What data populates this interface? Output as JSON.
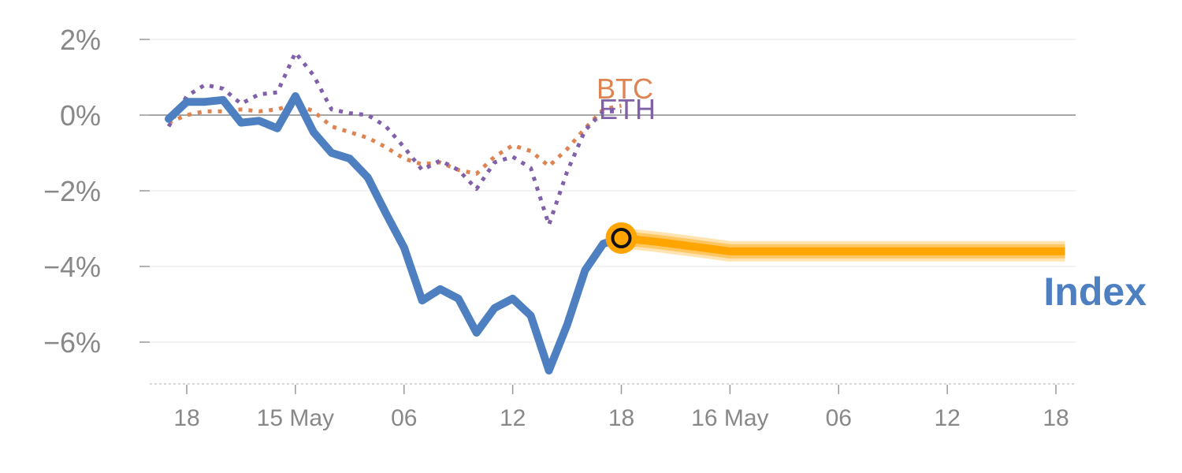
{
  "chart_data": {
    "type": "line",
    "x_tick_labels": [
      "18",
      "15 May",
      "06",
      "12",
      "18",
      "16 May",
      "06",
      "12",
      "18"
    ],
    "y_tick_labels": [
      "2%",
      "0%",
      "−2%",
      "−4%",
      "−6%"
    ],
    "y_ticks": [
      2,
      0,
      -2,
      -4,
      -6
    ],
    "ylim": [
      -7.2,
      2.6
    ],
    "xlim": [
      0,
      49
    ],
    "x_ticks": [
      1,
      7,
      13,
      19,
      25,
      31,
      37,
      43,
      49
    ],
    "grid": true,
    "series": [
      {
        "name": "Index",
        "color": "#4e80c1",
        "style": "solid",
        "x": [
          0,
          1,
          2,
          3,
          4,
          5,
          6,
          7,
          8,
          9,
          10,
          11,
          12,
          13,
          14,
          15,
          16,
          17,
          18,
          19,
          20,
          21,
          22,
          23,
          24,
          25
        ],
        "values": [
          -0.1,
          0.35,
          0.35,
          0.4,
          -0.2,
          -0.15,
          -0.35,
          0.5,
          -0.45,
          -1.0,
          -1.15,
          -1.65,
          -2.6,
          -3.5,
          -4.9,
          -4.6,
          -4.85,
          -5.75,
          -5.1,
          -4.85,
          -5.3,
          -6.75,
          -5.55,
          -4.1,
          -3.4,
          -3.25
        ]
      },
      {
        "name": "BTC",
        "color": "#dd8452",
        "style": "dotted",
        "x": [
          0,
          1,
          2,
          3,
          4,
          5,
          6,
          7,
          8,
          9,
          10,
          11,
          12,
          13,
          14,
          15,
          16,
          17,
          18,
          19,
          20,
          21,
          22,
          23,
          24,
          25
        ],
        "values": [
          -0.2,
          0.0,
          0.1,
          0.1,
          0.15,
          0.1,
          0.15,
          0.3,
          0.1,
          -0.3,
          -0.45,
          -0.6,
          -0.85,
          -1.15,
          -1.3,
          -1.25,
          -1.45,
          -1.55,
          -1.1,
          -0.8,
          -0.95,
          -1.35,
          -0.9,
          -0.35,
          0.15,
          0.25
        ]
      },
      {
        "name": "ETH",
        "color": "#8060a8",
        "style": "dotted",
        "x": [
          0,
          1,
          2,
          3,
          4,
          5,
          6,
          7,
          8,
          9,
          10,
          11,
          12,
          13,
          14,
          15,
          16,
          17,
          18,
          19,
          20,
          21,
          22,
          23,
          24,
          25
        ],
        "values": [
          -0.3,
          0.5,
          0.8,
          0.7,
          0.3,
          0.55,
          0.6,
          1.65,
          1.05,
          0.15,
          0.05,
          0.0,
          -0.3,
          -0.85,
          -1.45,
          -1.2,
          -1.45,
          -1.95,
          -1.25,
          -1.1,
          -1.4,
          -2.9,
          -1.5,
          -0.4,
          0.1,
          0.1
        ]
      },
      {
        "name": "",
        "color": "#ffa500",
        "style": "forecast-band",
        "x": [
          25,
          27,
          31,
          37,
          43,
          49,
          49.5
        ],
        "values": [
          -3.25,
          -3.35,
          -3.6,
          -3.6,
          -3.6,
          -3.6,
          -3.6
        ]
      }
    ],
    "marker": {
      "x": 25,
      "value": -3.25,
      "fill": "#ffa500",
      "stroke": "#111111"
    },
    "labels": {
      "index": "Index",
      "btc": "BTC",
      "eth": "ETH"
    }
  }
}
